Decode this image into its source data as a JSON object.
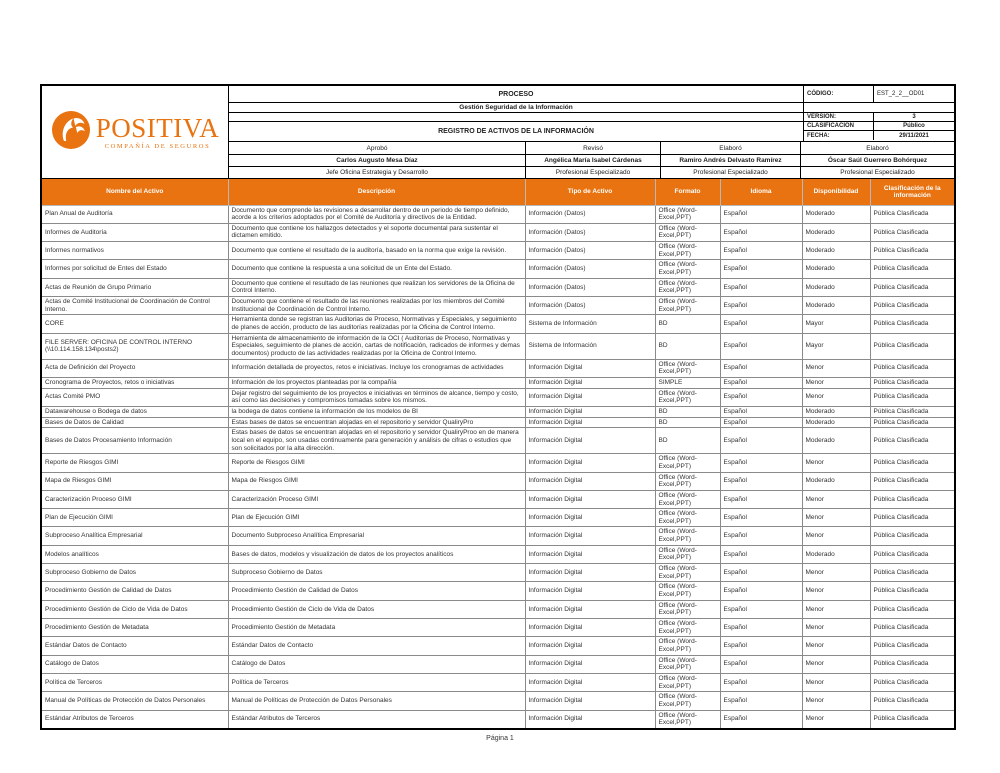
{
  "colors": {
    "accent": "#E87310",
    "header_text": "#FFFFFF",
    "body_border": "#8a8a8a"
  },
  "page": {
    "footer": "Página 1"
  },
  "logo": {
    "brand": "POSITIVA",
    "tagline": "COMPAÑÍA DE SEGUROS"
  },
  "header": {
    "proceso_label": "PROCESO",
    "proceso_value": "Gestión Seguridad de la Información",
    "title": "REGISTRO DE ACTIVOS DE LA INFORMACIÓN",
    "meta": [
      {
        "label": "CÓDIGO:",
        "value": "EST_2_2__OD01"
      },
      {
        "label": "",
        "value": ""
      },
      {
        "label": "VERSIÓN:",
        "value": "3"
      },
      {
        "label": "CLASIFICACIÓN",
        "value": "Público"
      },
      {
        "label": "FECHA:",
        "value": "29/11/2021"
      }
    ],
    "signatures": [
      {
        "role": "Aprobó",
        "name": "Carlos Augusto Mesa Díaz",
        "title": "Jefe Oficina Estrategia y Desarrollo"
      },
      {
        "role": "Revisó",
        "name": "Angélica María Isabel Cárdenas",
        "title": "Profesional Especializado"
      },
      {
        "role": "Elaboró",
        "name": "Ramiro Andrés Delvasto Ramírez",
        "title": "Profesional Especializado"
      },
      {
        "role": "Elaboró",
        "name": "Óscar Saúl Guerrero Bohórquez",
        "title": "Profesional Especializado"
      }
    ]
  },
  "table": {
    "columns": [
      "Nombre del Activo",
      "Descripción",
      "Tipo de Activo",
      "Formato",
      "Idioma",
      "Disponibilidad",
      "Clasificación de la información"
    ],
    "rows": [
      {
        "nombre": "Plan Anual de Auditoría",
        "descripcion": "Documento que comprende las revisiones a desarrollar dentro de un periodo de tiempo definido, acorde a los criterios adoptados por el Comité de Auditoría y directivos de la Entidad.",
        "tipo": "Información (Datos)",
        "formato": "Office (Word-Excel,PPT)",
        "idioma": "Español",
        "disponibilidad": "Moderado",
        "clasificacion": "Pública Clasificada"
      },
      {
        "nombre": "Informes de Auditoría",
        "descripcion": "Documento que contiene los hallazgos detectados y el soporte documental para sustentar el dictamen emitido.",
        "tipo": "Información (Datos)",
        "formato": "Office (Word-Excel,PPT)",
        "idioma": "Español",
        "disponibilidad": "Moderado",
        "clasificacion": "Pública Clasificada"
      },
      {
        "nombre": "Informes normativos",
        "descripcion": "Documento que contiene el resultado de la auditoría, basado en la norma que exige la revisión.",
        "tipo": "Información (Datos)",
        "formato": "Office (Word-Excel,PPT)",
        "idioma": "Español",
        "disponibilidad": "Moderado",
        "clasificacion": "Pública Clasificada"
      },
      {
        "nombre": "Informes por solicitud de  Entes del Estado",
        "descripcion": "Documento que contiene la respuesta a una solicitud de un Ente del Estado.",
        "tipo": "Información (Datos)",
        "formato": "Office (Word-Excel,PPT)",
        "idioma": "Español",
        "disponibilidad": "Moderado",
        "clasificacion": "Pública Clasificada"
      },
      {
        "nombre": "Actas de Reunión de Grupo Primario",
        "descripcion": "Documento que contiene el resultado de las reuniones que realizan los servidores de la Oficina de Control Interno.",
        "tipo": "Información (Datos)",
        "formato": "Office (Word-Excel,PPT)",
        "idioma": "Español",
        "disponibilidad": "Moderado",
        "clasificacion": "Pública Clasificada"
      },
      {
        "nombre": "Actas de Comité Institucional de Coordinación de Control Interno.",
        "descripcion": "Documento que contiene el resultado de las reuniones realizadas por los miembros del Comité Institucional de Coordinación de Control Interno.",
        "tipo": "Información (Datos)",
        "formato": "Office (Word-Excel,PPT)",
        "idioma": "Español",
        "disponibilidad": "Moderado",
        "clasificacion": "Pública Clasificada"
      },
      {
        "nombre": "CORE",
        "descripcion": "Herramienta donde se registran las  Auditorias de Proceso, Normativas y Especiales, y seguimiento de planes de acción, producto de las auditorías realizadas por la Oficina de Control Interno.",
        "tipo": "Sistema de Información",
        "formato": "BD",
        "idioma": "Español",
        "disponibilidad": "Mayor",
        "clasificacion": "Pública Clasificada"
      },
      {
        "nombre": "FILE SERVER: OFICINA DE CONTROL INTERNO (\\\\10.114.158.134\\posts2)",
        "descripcion": "Herramienta  de almacenamiento de información de la OCI ( Auditorias de Proceso, Normativas y Especiales, seguimiento de planes de acción, cartas de notificación, radicados de informes y demas documentos) producto de las actividades  realizadas por la Oficina de Control Interno.",
        "tipo": "Sistema de Información",
        "formato": "BD",
        "idioma": "Español",
        "disponibilidad": "Mayor",
        "clasificacion": "Pública Clasificada"
      },
      {
        "nombre": "Acta de Definición del  Proyecto",
        "descripcion": "Información detallada de proyectos, retos e iniciativas. Incluye los cronogramas de actividades",
        "tipo": "Información Digital",
        "formato": "Office (Word-Excel,PPT)",
        "idioma": "Español",
        "disponibilidad": "Menor",
        "clasificacion": "Pública Clasificada"
      },
      {
        "nombre": "Cronograma de Proyectos, retos o iniciativas",
        "descripcion": "Información de los proyectos  planteadas por la compañía",
        "tipo": "Información Digital",
        "formato": "SIMPLE",
        "idioma": "Español",
        "disponibilidad": "Menor",
        "clasificacion": "Pública Clasificada"
      },
      {
        "nombre": "Actas Comité PMO",
        "descripcion": "Dejar registro del seguimiento de los proyectos e iniciativas en términos de alcance, tiempo y costo, así como  las decisiones y compromisos tomadas sobre los mismos.",
        "tipo": "Información Digital",
        "formato": "Office (Word-Excel,PPT)",
        "idioma": "Español",
        "disponibilidad": "Menor",
        "clasificacion": "Pública Clasificada"
      },
      {
        "nombre": "Datawarehouse o Bodega de datos",
        "descripcion": "la bodega de datos contiene la información de los modelos de BI",
        "tipo": "Información Digital",
        "formato": "BD",
        "idioma": "Español",
        "disponibilidad": "Moderado",
        "clasificacion": "Pública Clasificada"
      },
      {
        "nombre": "Bases de Datos de Calidad",
        "descripcion": "Estas bases de datos se encuentran alojadas en el repositorio y servidor QualiryPro",
        "tipo": "Información Digital",
        "formato": "BD",
        "idioma": "Español",
        "disponibilidad": "Moderado",
        "clasificacion": "Pública Clasificada"
      },
      {
        "nombre": "Bases de Datos Procesamiento Información",
        "descripcion": "Estas bases de datos se encuentran alojadas en el repositorio y servidor QualiryProo en de manera local en el equipo, son usadas continuamente para generación y análisis de cifras o estudios que son solicitados por la alta dirección.",
        "tipo": "Información Digital",
        "formato": "BD",
        "idioma": "Español",
        "disponibilidad": "Moderado",
        "clasificacion": "Pública Clasificada"
      },
      {
        "nombre": "Reporte de Riesgos GIMI",
        "descripcion": "Reporte de Riesgos GIMI",
        "tipo": "Información Digital",
        "formato": "Office (Word-Excel,PPT)",
        "idioma": "Español",
        "disponibilidad": "Menor",
        "clasificacion": "Pública Clasificada"
      },
      {
        "nombre": "Mapa de Riesgos GIMI",
        "descripcion": "Mapa de Riesgos GIMI",
        "tipo": "Información Digital",
        "formato": "Office (Word-Excel,PPT)",
        "idioma": "Español",
        "disponibilidad": "Moderado",
        "clasificacion": "Pública Clasificada"
      },
      {
        "nombre": "Caracterización Proceso GIMI",
        "descripcion": "Caracterización Proceso GIMI",
        "tipo": "Información Digital",
        "formato": "Office (Word-Excel,PPT)",
        "idioma": "Español",
        "disponibilidad": "Menor",
        "clasificacion": "Pública Clasificada"
      },
      {
        "nombre": "Plan de Ejecución GIMI",
        "descripcion": "Plan de Ejecución GIMI",
        "tipo": "Información Digital",
        "formato": "Office (Word-Excel,PPT)",
        "idioma": "Español",
        "disponibilidad": "Menor",
        "clasificacion": "Pública Clasificada"
      },
      {
        "nombre": "Subproceso Analítica Empresarial",
        "descripcion": "Documento Subproceso Analítica Empresarial",
        "tipo": "Información Digital",
        "formato": "Office (Word-Excel,PPT)",
        "idioma": "Español",
        "disponibilidad": "Menor",
        "clasificacion": "Pública Clasificada"
      },
      {
        "nombre": "Modelos analíticos",
        "descripcion": "Bases de datos, modelos y visualización de datos de los proyectos analíticos",
        "tipo": "Información Digital",
        "formato": "Office (Word-Excel,PPT)",
        "idioma": "Español",
        "disponibilidad": "Moderado",
        "clasificacion": "Pública Clasificada"
      },
      {
        "nombre": "Subproceso Gobierno de Datos",
        "descripcion": "Subproceso Gobierno de Datos",
        "tipo": "Información Digital",
        "formato": "Office (Word-Excel,PPT)",
        "idioma": "Español",
        "disponibilidad": "Menor",
        "clasificacion": "Pública Clasificada"
      },
      {
        "nombre": "Procedimiento Gestión de Calidad de Datos",
        "descripcion": "Procedimiento Gestión de Calidad de Datos",
        "tipo": "Información Digital",
        "formato": "Office (Word-Excel,PPT)",
        "idioma": "Español",
        "disponibilidad": "Menor",
        "clasificacion": "Pública Clasificada"
      },
      {
        "nombre": "Procedimiento Gestión de Ciclo de Vida de Datos",
        "descripcion": "Procedimiento Gestión de Ciclo de Vida de Datos",
        "tipo": "Información Digital",
        "formato": "Office (Word-Excel,PPT)",
        "idioma": "Español",
        "disponibilidad": "Menor",
        "clasificacion": "Pública Clasificada"
      },
      {
        "nombre": "Procedimiento Gestión de Metadata",
        "descripcion": "Procedimiento Gestión de Metadata",
        "tipo": "Información Digital",
        "formato": "Office (Word-Excel,PPT)",
        "idioma": "Español",
        "disponibilidad": "Menor",
        "clasificacion": "Pública Clasificada"
      },
      {
        "nombre": "Estándar Datos de Contacto",
        "descripcion": "Estándar Datos de Contacto",
        "tipo": "Información Digital",
        "formato": "Office (Word-Excel,PPT)",
        "idioma": "Español",
        "disponibilidad": "Menor",
        "clasificacion": "Pública Clasificada"
      },
      {
        "nombre": "Catálogo de Datos",
        "descripcion": "Catálogo de Datos",
        "tipo": "Información Digital",
        "formato": "Office (Word-Excel,PPT)",
        "idioma": "Español",
        "disponibilidad": "Menor",
        "clasificacion": "Pública Clasificada"
      },
      {
        "nombre": "Política de Terceros",
        "descripcion": "Política de Terceros",
        "tipo": "Información Digital",
        "formato": "Office (Word-Excel,PPT)",
        "idioma": "Español",
        "disponibilidad": "Menor",
        "clasificacion": "Pública Clasificada"
      },
      {
        "nombre": "Manual de Políticas de Protección de Datos Personales",
        "descripcion": "Manual de Políticas de Protección de Datos Personales",
        "tipo": "Información Digital",
        "formato": "Office (Word-Excel,PPT)",
        "idioma": "Español",
        "disponibilidad": "Menor",
        "clasificacion": "Pública Clasificada"
      },
      {
        "nombre": "Estándar Atributos de Terceros",
        "descripcion": "Estándar Atributos de Terceros",
        "tipo": "Información Digital",
        "formato": "Office (Word-Excel,PPT)",
        "idioma": "Español",
        "disponibilidad": "Menor",
        "clasificacion": "Pública Clasificada"
      }
    ]
  }
}
